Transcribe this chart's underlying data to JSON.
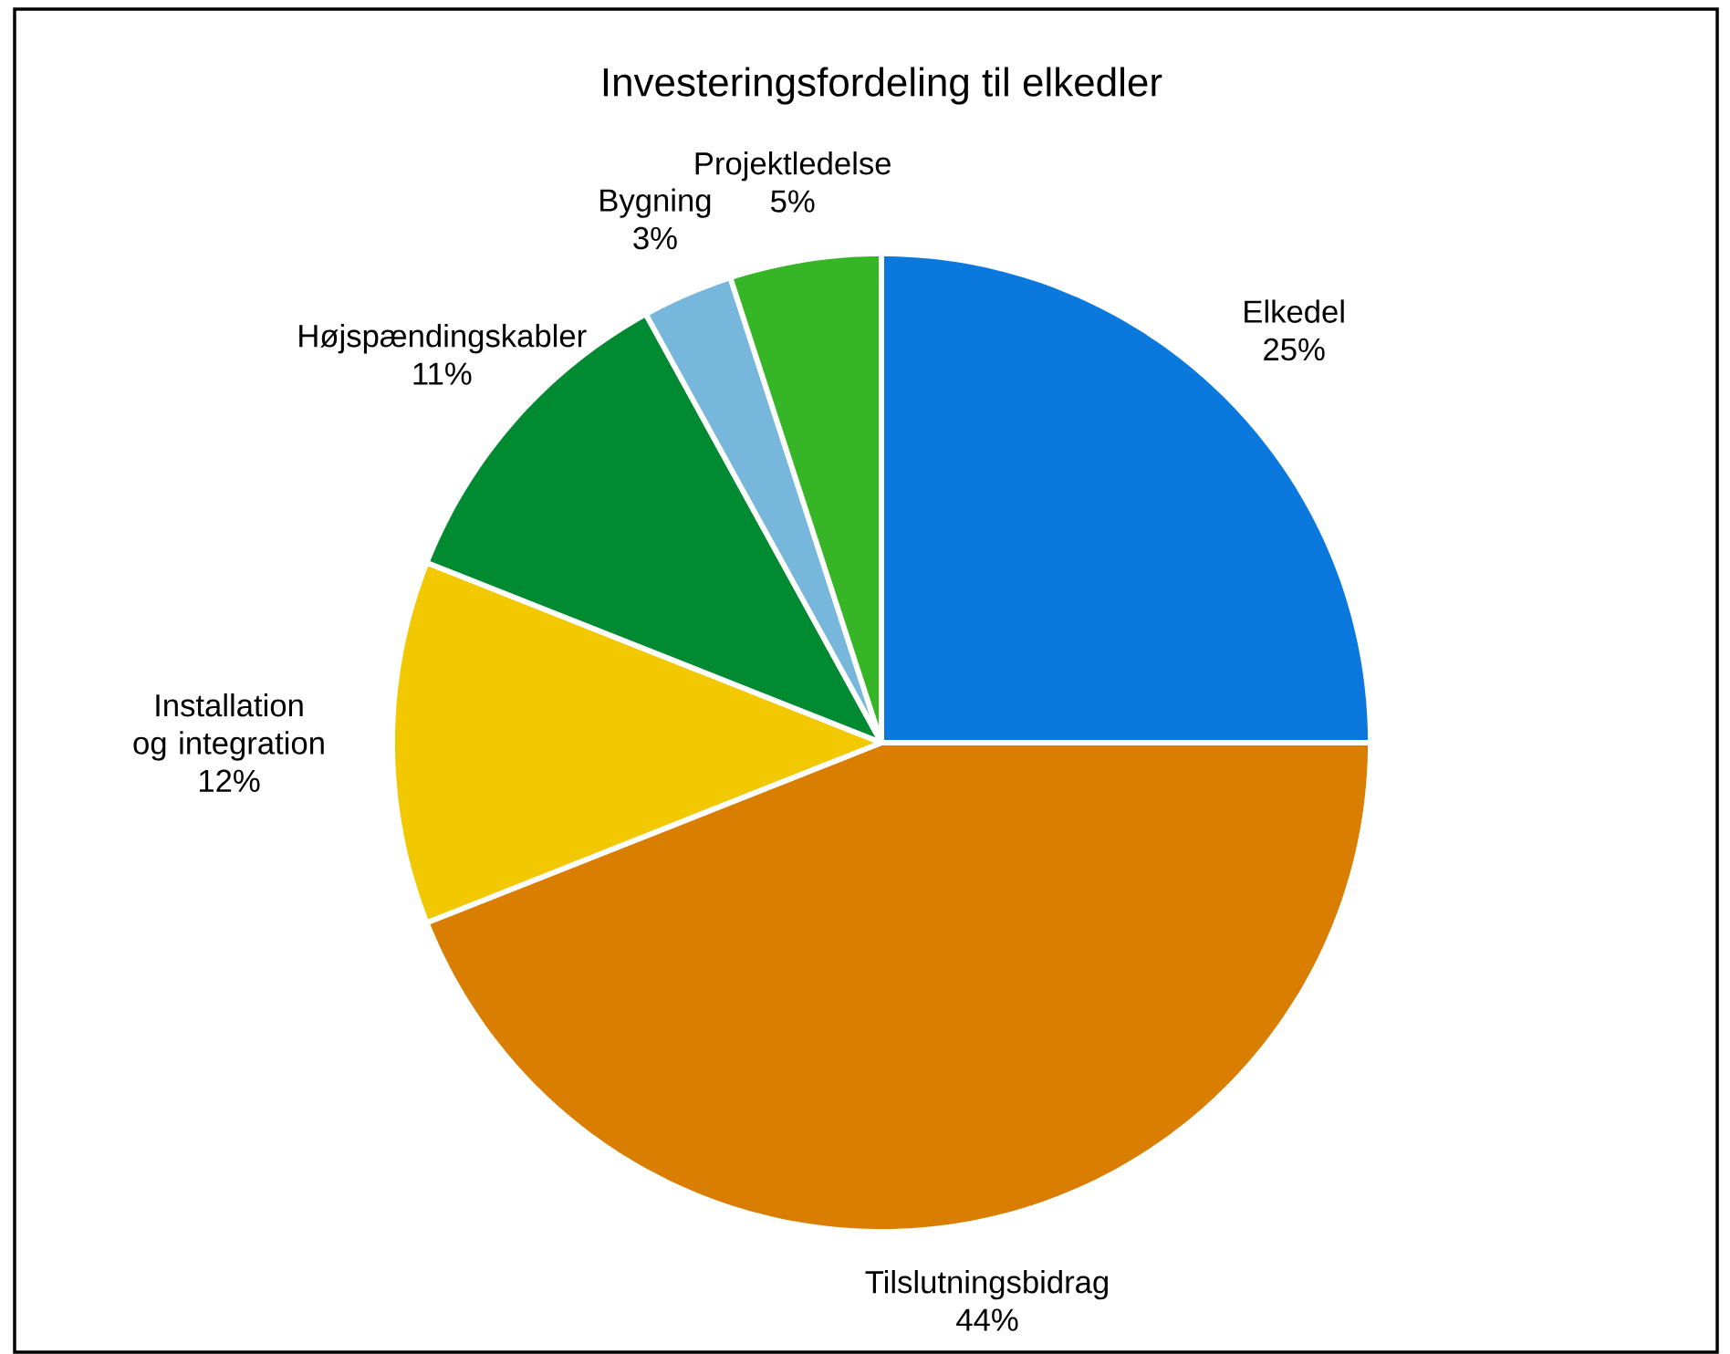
{
  "chart_data": {
    "type": "pie",
    "title": "Investeringsfordeling til elkedler",
    "categories": [
      "Elkedel",
      "Tilslutningsbidrag",
      "Installation og integration",
      "Højspændingskabler",
      "Bygning",
      "Projektledelse"
    ],
    "values": [
      25,
      44,
      12,
      11,
      3,
      5
    ],
    "value_labels": [
      "25%",
      "44%",
      "12%",
      "11%",
      "3%",
      "5%"
    ],
    "colors": [
      "#0a78dc",
      "#d97e00",
      "#f2c800",
      "#008a32",
      "#77b7dc",
      "#36b526"
    ],
    "legend": false
  }
}
